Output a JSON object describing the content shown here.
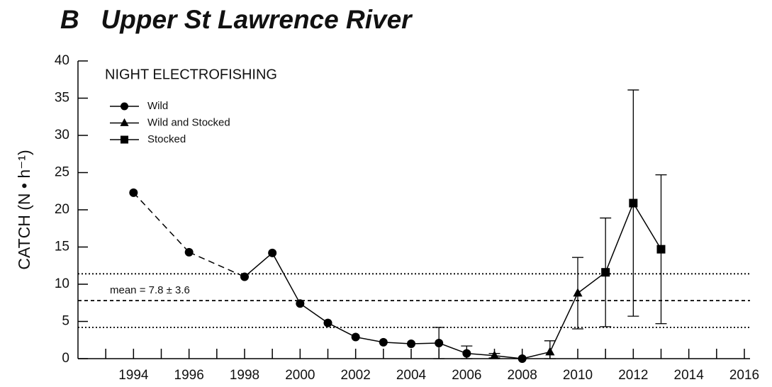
{
  "chart_data": {
    "type": "line",
    "title": "B   Upper St Lawrence River",
    "subtitle": "NIGHT ELECTROFISHING",
    "y_label": "CATCH (N • h⁻¹)",
    "xlim": [
      1992,
      2016
    ],
    "ylim": [
      0,
      40
    ],
    "xticks": [
      1994,
      1996,
      1998,
      2000,
      2002,
      2004,
      2006,
      2008,
      2010,
      2012,
      2014,
      2016
    ],
    "xticks_minor": [
      1993,
      1995,
      1997,
      1999,
      2001,
      2003,
      2005,
      2007,
      2009,
      2011,
      2013,
      2015
    ],
    "yticks": [
      0,
      5,
      10,
      15,
      20,
      25,
      30,
      35,
      40
    ],
    "dash_until_x": 1998,
    "mean": 7.8,
    "sd": 3.6,
    "mean_label": "mean = 7.8 ± 3.6",
    "series": [
      {
        "name": "Wild",
        "marker": "circle",
        "color": "#000",
        "x": [
          1994,
          1996,
          1998,
          1999,
          2000,
          2001,
          2002,
          2003,
          2004,
          2005,
          2006,
          2008
        ],
        "values": [
          22.3,
          14.3,
          11.0,
          14.2,
          7.4,
          4.8,
          2.9,
          2.2,
          2.0,
          2.1,
          0.7,
          0.0
        ],
        "errors": [
          null,
          null,
          null,
          null,
          null,
          null,
          null,
          null,
          null,
          2.1,
          1.0,
          null
        ]
      },
      {
        "name": "Wild and Stocked",
        "marker": "triangle",
        "color": "#000",
        "x": [
          2007,
          2009,
          2010
        ],
        "values": [
          0.4,
          0.9,
          8.8
        ],
        "errors": [
          0.3,
          1.5,
          4.8
        ]
      },
      {
        "name": "Stocked",
        "marker": "square",
        "color": "#000",
        "x": [
          2011,
          2012,
          2013
        ],
        "values": [
          11.6,
          20.9,
          14.7
        ],
        "errors": [
          7.3,
          15.2,
          10.0
        ]
      }
    ]
  }
}
